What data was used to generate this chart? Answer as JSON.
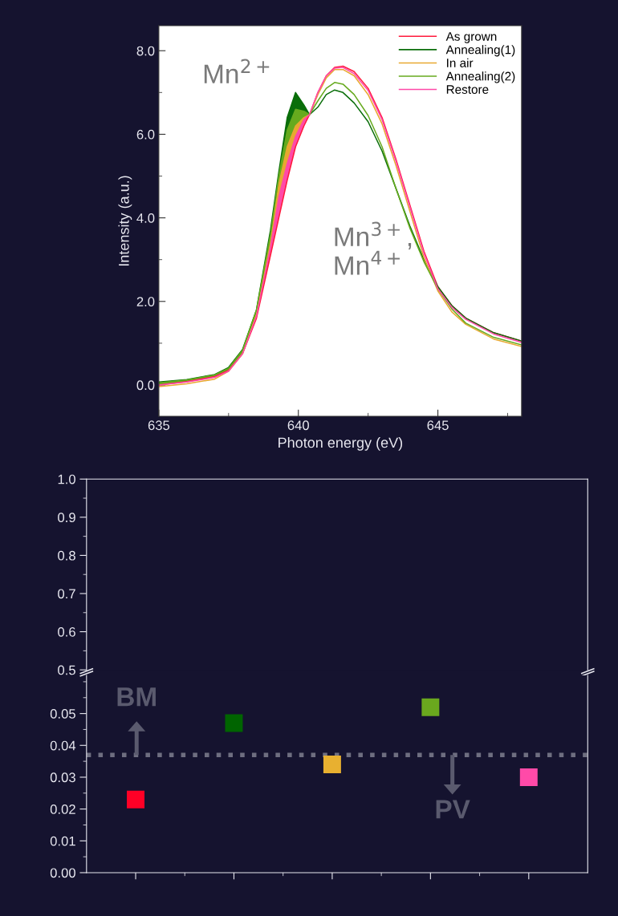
{
  "chart_data": [
    {
      "type": "line",
      "xlabel": "Photon energy (eV)",
      "ylabel": "Intensity (a.u.)",
      "x": [
        635,
        636,
        637,
        637.5,
        638,
        638.5,
        639,
        639.3,
        639.6,
        639.9,
        640.2,
        640.4,
        640.7,
        641,
        641.3,
        641.6,
        642,
        642.5,
        643,
        643.5,
        644,
        644.5,
        645,
        645.5,
        646,
        647,
        648
      ],
      "series": [
        {
          "name": "As grown",
          "color": "#ff1a3c",
          "values": [
            0.0,
            0.08,
            0.2,
            0.35,
            0.75,
            1.6,
            3.1,
            4.0,
            4.9,
            5.7,
            6.2,
            6.47,
            7.0,
            7.4,
            7.6,
            7.63,
            7.5,
            7.1,
            6.4,
            5.4,
            4.3,
            3.2,
            2.35,
            1.9,
            1.6,
            1.25,
            1.05
          ]
        },
        {
          "name": "Annealing(1)",
          "color": "#0a6e0a",
          "values": [
            0.07,
            0.13,
            0.25,
            0.42,
            0.85,
            1.8,
            3.7,
            5.1,
            6.4,
            7.0,
            6.7,
            6.47,
            6.65,
            6.95,
            7.06,
            7.0,
            6.75,
            6.3,
            5.6,
            4.7,
            3.8,
            3.0,
            2.35,
            1.9,
            1.6,
            1.25,
            1.05
          ]
        },
        {
          "name": "In air",
          "color": "#e8a830",
          "values": [
            -0.04,
            0.03,
            0.14,
            0.33,
            0.75,
            1.7,
            3.4,
            4.8,
            5.7,
            6.2,
            6.4,
            6.47,
            6.95,
            7.35,
            7.55,
            7.55,
            7.4,
            6.95,
            6.25,
            5.25,
            4.15,
            3.05,
            2.25,
            1.75,
            1.45,
            1.1,
            0.92
          ]
        },
        {
          "name": "Annealing(2)",
          "color": "#66aa1e",
          "values": [
            0.05,
            0.12,
            0.24,
            0.4,
            0.83,
            1.8,
            3.6,
            5.0,
            6.1,
            6.6,
            6.55,
            6.47,
            6.8,
            7.1,
            7.24,
            7.2,
            6.95,
            6.45,
            5.7,
            4.7,
            3.75,
            2.95,
            2.3,
            1.82,
            1.48,
            1.14,
            0.96
          ]
        },
        {
          "name": "Restore",
          "color": "#ff4aa8",
          "values": [
            0.0,
            0.07,
            0.18,
            0.33,
            0.75,
            1.65,
            3.3,
            4.5,
            5.3,
            5.95,
            6.35,
            6.47,
            7.0,
            7.4,
            7.58,
            7.6,
            7.45,
            7.05,
            6.35,
            5.35,
            4.25,
            3.15,
            2.3,
            1.86,
            1.57,
            1.22,
            1.02
          ]
        }
      ],
      "xlim": [
        635,
        648
      ],
      "xticks": [
        635,
        640,
        645
      ],
      "ylim": [
        -0.75,
        8.6
      ],
      "yticks": [
        {
          "value": 0,
          "label": "0.0"
        },
        {
          "value": 2,
          "label": "2.0"
        },
        {
          "value": 4,
          "label": "4.0"
        },
        {
          "value": 6,
          "label": "6.0"
        },
        {
          "value": 8,
          "label": "8.0"
        }
      ],
      "legend": "top right",
      "grid": false,
      "marker": "none",
      "line_style": "solid",
      "annotations": [
        "Mn$^{2+}$",
        "Mn$^{3+}$,\nMn$^{4+}$"
      ]
    },
    {
      "type": "scatter",
      "categories": [
        null,
        null,
        null,
        null,
        null
      ],
      "values": [
        null,
        null,
        null,
        null,
        null
      ],
      "ylim": [
        0.5,
        1.0
      ],
      "yticks": [
        0.5,
        0.6,
        0.7,
        0.8,
        0.9,
        {
          "value": 1.0,
          "label": "1.0"
        }
      ],
      "tick_labels": "y",
      "grid": false
    },
    {
      "type": "scatter",
      "categories": [
        null,
        null,
        null,
        null,
        null
      ],
      "values": [
        0.023,
        0.047,
        0.034,
        0.052,
        0.03
      ],
      "colors": [
        "#ff0026",
        "#006400",
        "#e8b030",
        "#6aa81e",
        "#ff4aa8"
      ],
      "marker": "square",
      "ylim": [
        0,
        0.062
      ],
      "yticks": [
        {
          "value": 0,
          "label": "0.00"
        },
        0.01,
        0.02,
        0.03,
        0.04,
        0.05
      ],
      "grid": false,
      "ref_lines": [
        {
          "axis": "y",
          "value": 0.037,
          "color": "#6e6e80",
          "line_style": "dotted"
        }
      ],
      "annotations": [
        "BM",
        "PV"
      ]
    }
  ]
}
